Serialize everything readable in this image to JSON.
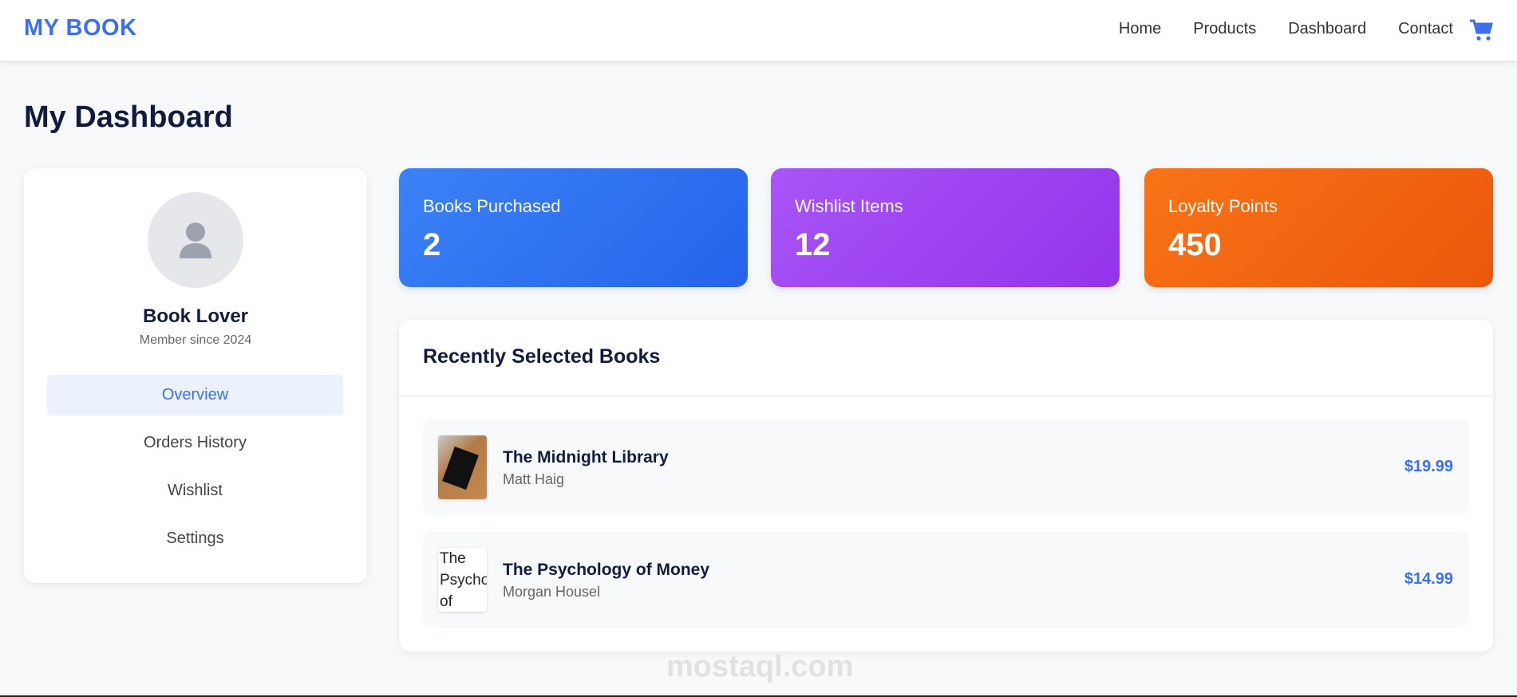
{
  "nav": {
    "logo": "MY BOOK",
    "links": [
      "Home",
      "Products",
      "Dashboard",
      "Contact"
    ],
    "cart_icon": "cart-icon"
  },
  "page_title": "My Dashboard",
  "profile": {
    "name": "Book Lover",
    "since": "Member since 2024",
    "menu": [
      "Overview",
      "Orders History",
      "Wishlist",
      "Settings"
    ],
    "active": "Overview"
  },
  "stats": [
    {
      "label": "Books Purchased",
      "value": "2",
      "color": "#2f6df0"
    },
    {
      "label": "Wishlist Items",
      "value": "12",
      "color": "#a03cee"
    },
    {
      "label": "Loyalty Points",
      "value": "450",
      "color": "#ef6113"
    }
  ],
  "recent": {
    "title": "Recently Selected Books",
    "items": [
      {
        "title": "The Midnight Library",
        "author": "Matt Haig",
        "price": "$19.99"
      },
      {
        "title": "The Psychology of Money",
        "author": "Morgan Housel",
        "price": "$14.99",
        "alt": "The Psychology of Money"
      }
    ]
  },
  "watermark": "mostaql.com"
}
